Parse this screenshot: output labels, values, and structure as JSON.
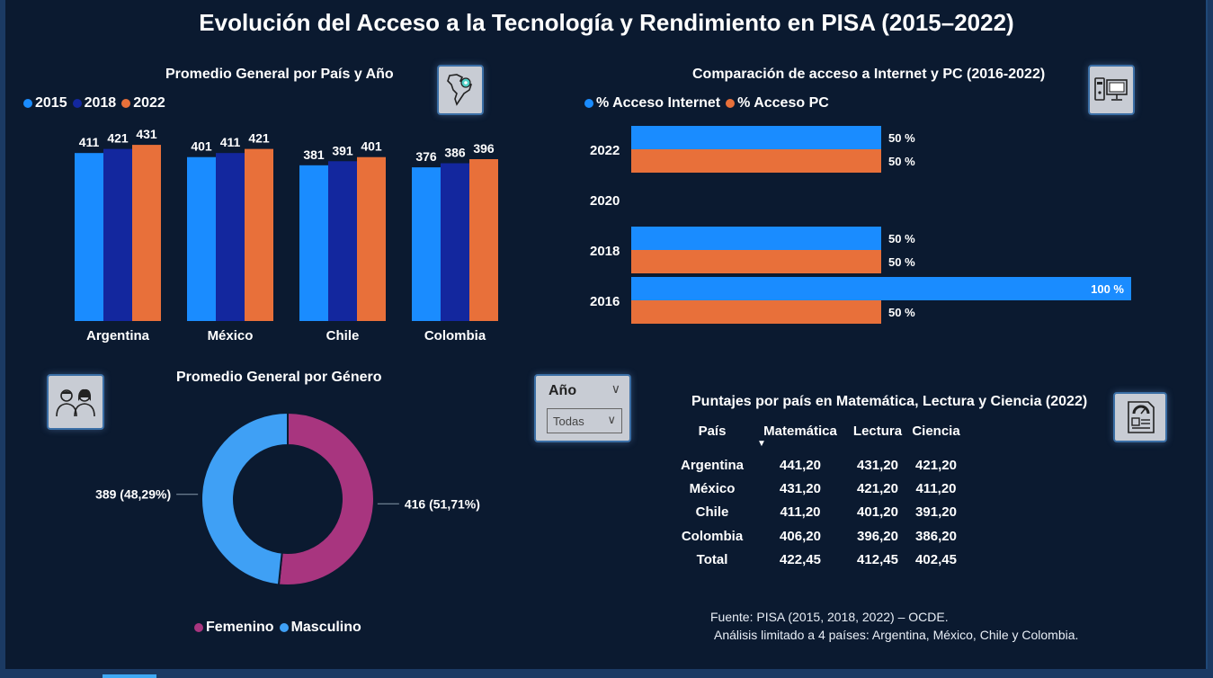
{
  "page": {
    "title": "Evolución del Acceso a la Tecnología y Rendimiento en PISA (2015–2022)"
  },
  "colors": {
    "y2015": "#1a8cff",
    "y2018": "#13279e",
    "y2022": "#e8703a",
    "internet": "#1a8cff",
    "pc": "#e8703a",
    "femenino": "#a8357f",
    "masculino": "#3fa0f5"
  },
  "chart_data": [
    {
      "type": "bar",
      "title": "Promedio General por País y Año",
      "categories": [
        "Argentina",
        "México",
        "Chile",
        "Colombia"
      ],
      "series": [
        {
          "name": "2015",
          "values": [
            411,
            401,
            381,
            376
          ]
        },
        {
          "name": "2018",
          "values": [
            421,
            411,
            391,
            386
          ]
        },
        {
          "name": "2022",
          "values": [
            431,
            421,
            401,
            396
          ]
        }
      ],
      "ylim": [
        0,
        440
      ]
    },
    {
      "type": "bar",
      "orientation": "horizontal",
      "title": "Comparación de acceso a Internet y PC (2016-2022)",
      "categories": [
        "2022",
        "2020",
        "2018",
        "2016"
      ],
      "series": [
        {
          "name": "% Acceso Internet",
          "values": [
            50,
            null,
            50,
            100
          ],
          "labels": [
            "50 %",
            "",
            "50 %",
            "100 %"
          ]
        },
        {
          "name": "% Acceso PC",
          "values": [
            50,
            null,
            50,
            50
          ],
          "labels": [
            "50 %",
            "",
            "50 %",
            "50 %"
          ]
        }
      ],
      "xlim": [
        0,
        100
      ]
    },
    {
      "type": "pie",
      "variant": "donut",
      "title": "Promedio General por Género",
      "slices": [
        {
          "name": "Femenino",
          "value": 416,
          "label": "416 (51,71%)"
        },
        {
          "name": "Masculino",
          "value": 389,
          "label": "389 (48,29%)"
        }
      ]
    },
    {
      "type": "table",
      "title": "Puntajes por país en Matemática, Lectura y Ciencia (2022)",
      "columns": [
        "País",
        "Matemática",
        "Lectura",
        "Ciencia"
      ],
      "rows": [
        [
          "Argentina",
          "441,20",
          "431,20",
          "421,20"
        ],
        [
          "México",
          "431,20",
          "421,20",
          "411,20"
        ],
        [
          "Chile",
          "411,20",
          "401,20",
          "391,20"
        ],
        [
          "Colombia",
          "406,20",
          "396,20",
          "386,20"
        ],
        [
          "Total",
          "422,45",
          "412,45",
          "402,45"
        ]
      ]
    }
  ],
  "icons": {
    "map": "map-icon",
    "computer": "computer-icon",
    "people": "people-icon",
    "document": "document-icon"
  },
  "slicer": {
    "label": "Año",
    "value": "Todas"
  },
  "source": {
    "line1": "Fuente: PISA (2015, 2018, 2022) – OCDE.",
    "line2": "Análisis limitado a 4 países: Argentina, México, Chile y Colombia."
  }
}
